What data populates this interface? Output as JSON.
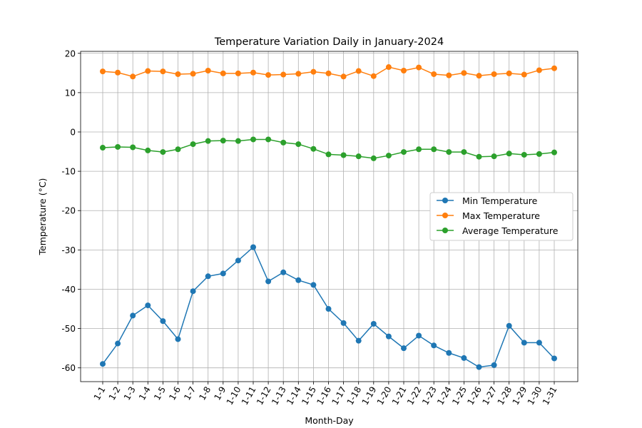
{
  "chart_data": {
    "type": "line",
    "title": "Temperature Variation Daily in January-2024",
    "xlabel": "Month-Day",
    "ylabel": "Temperature (°C)",
    "ylim": [
      -63.5,
      20.5
    ],
    "yticks": [
      -60,
      -50,
      -40,
      -30,
      -20,
      -10,
      0,
      10,
      20
    ],
    "grid": true,
    "legend": "center-right",
    "categories": [
      "1-1",
      "1-2",
      "1-3",
      "1-4",
      "1-5",
      "1-6",
      "1-7",
      "1-8",
      "1-9",
      "1-10",
      "1-11",
      "1-12",
      "1-13",
      "1-14",
      "1-15",
      "1-16",
      "1-17",
      "1-18",
      "1-19",
      "1-20",
      "1-21",
      "1-22",
      "1-23",
      "1-24",
      "1-25",
      "1-26",
      "1-27",
      "1-28",
      "1-29",
      "1-30",
      "1-31"
    ],
    "series": [
      {
        "name": "Min Temperature",
        "color": "#1f77b4",
        "values": [
          -59.0,
          -53.8,
          -46.7,
          -44.1,
          -48.1,
          -52.7,
          -40.5,
          -36.7,
          -36.0,
          -32.7,
          -29.3,
          -38.0,
          -35.7,
          -37.7,
          -38.9,
          -45.0,
          -48.6,
          -53.1,
          -48.8,
          -52.0,
          -55.0,
          -51.8,
          -54.3,
          -56.2,
          -57.5,
          -59.8,
          -59.3,
          -49.3,
          -53.6,
          -53.6,
          -57.6
        ]
      },
      {
        "name": "Max Temperature",
        "color": "#ff7f0e",
        "values": [
          15.4,
          15.1,
          14.1,
          15.5,
          15.4,
          14.7,
          14.8,
          15.6,
          14.9,
          14.9,
          15.1,
          14.5,
          14.6,
          14.8,
          15.3,
          14.9,
          14.1,
          15.5,
          14.2,
          16.5,
          15.6,
          16.4,
          14.7,
          14.4,
          15.0,
          14.3,
          14.7,
          14.9,
          14.6,
          15.7,
          16.2
        ]
      },
      {
        "name": "Average Temperature",
        "color": "#2ca02c",
        "values": [
          -4.0,
          -3.8,
          -3.9,
          -4.7,
          -5.1,
          -4.4,
          -3.1,
          -2.3,
          -2.2,
          -2.3,
          -1.9,
          -1.9,
          -2.7,
          -3.1,
          -4.3,
          -5.7,
          -5.9,
          -6.2,
          -6.7,
          -6.0,
          -5.1,
          -4.4,
          -4.4,
          -5.1,
          -5.1,
          -6.3,
          -6.2,
          -5.5,
          -5.8,
          -5.6,
          -5.2
        ]
      }
    ]
  }
}
